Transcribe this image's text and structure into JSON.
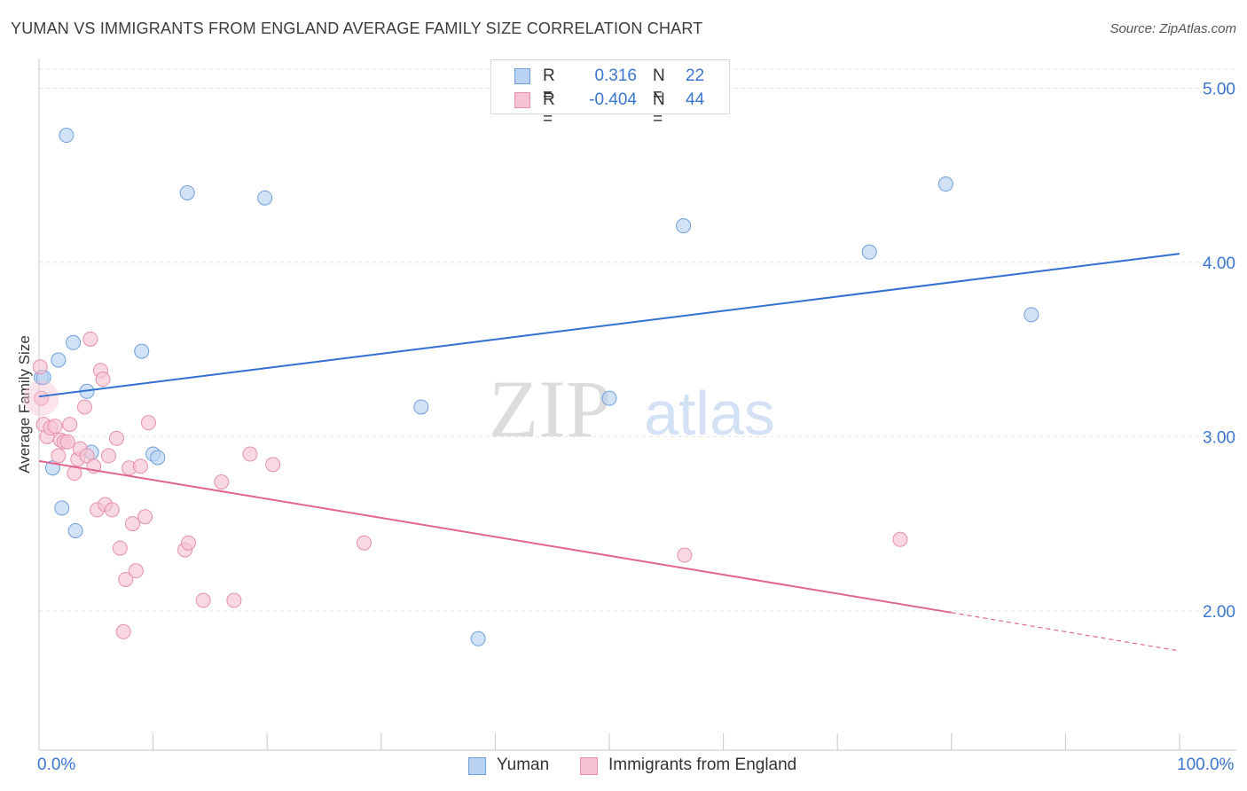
{
  "title": "YUMAN VS IMMIGRANTS FROM ENGLAND AVERAGE FAMILY SIZE CORRELATION CHART",
  "source": "Source: ZipAtlas.com",
  "watermark": {
    "zip": "ZIP",
    "atlas": "atlas"
  },
  "legend": {
    "rows": [
      {
        "r_label": "R =",
        "r_value": "0.316",
        "n_label": "N =",
        "n_value": "22"
      },
      {
        "r_label": "R =",
        "r_value": "-0.404",
        "n_label": "N =",
        "n_value": "44"
      }
    ]
  },
  "bottom_legend": {
    "series1": "Yuman",
    "series2": "Immigrants from England"
  },
  "x_axis": {
    "min_label": "0.0%",
    "max_label": "100.0%"
  },
  "colors": {
    "blue_fill": "#b9d2f2",
    "blue_stroke": "#6f9fdb",
    "blue_line": "#2f6fd1",
    "pink_fill": "#f6c3d3",
    "pink_stroke": "#e690ab",
    "pink_line": "#e0668f",
    "accent_text": "#3a76d0"
  },
  "chart_data": {
    "type": "scatter",
    "title": "YUMAN VS IMMIGRANTS FROM ENGLAND AVERAGE FAMILY SIZE CORRELATION CHART",
    "xlabel": "",
    "ylabel": "Average Family Size",
    "xlim": [
      0,
      100
    ],
    "ylim": [
      1.2,
      5.15
    ],
    "y_ticks": [
      2.0,
      3.0,
      4.0,
      5.0
    ],
    "y_tick_labels": [
      "2.00",
      "3.00",
      "4.00",
      "5.00"
    ],
    "series": [
      {
        "name": "Yuman",
        "r": 0.316,
        "n": 22,
        "points": [
          [
            0.2,
            3.34
          ],
          [
            0.4,
            3.34
          ],
          [
            1.2,
            2.82
          ],
          [
            1.7,
            3.44
          ],
          [
            2.0,
            2.59
          ],
          [
            2.4,
            4.73
          ],
          [
            3.0,
            3.54
          ],
          [
            3.2,
            2.46
          ],
          [
            4.2,
            3.26
          ],
          [
            4.6,
            2.91
          ],
          [
            9.0,
            3.49
          ],
          [
            10.0,
            2.9
          ],
          [
            10.4,
            2.88
          ],
          [
            13.0,
            4.4
          ],
          [
            19.8,
            4.37
          ],
          [
            33.5,
            3.17
          ],
          [
            38.5,
            1.84
          ],
          [
            50.0,
            3.22
          ],
          [
            56.5,
            4.21
          ],
          [
            72.8,
            4.06
          ],
          [
            79.5,
            4.45
          ],
          [
            87.0,
            3.7
          ]
        ],
        "trend": {
          "x0": 0,
          "y0": 3.23,
          "x1": 100,
          "y1": 4.05
        }
      },
      {
        "name": "Immigrants from England",
        "r": -0.404,
        "n": 44,
        "points": [
          [
            0.2,
            3.22
          ],
          [
            0.4,
            3.07
          ],
          [
            0.7,
            3.0
          ],
          [
            1.0,
            3.05
          ],
          [
            1.4,
            3.06
          ],
          [
            1.7,
            2.89
          ],
          [
            1.9,
            2.98
          ],
          [
            2.2,
            2.97
          ],
          [
            2.5,
            2.97
          ],
          [
            2.7,
            3.07
          ],
          [
            3.1,
            2.79
          ],
          [
            3.4,
            2.87
          ],
          [
            3.6,
            2.93
          ],
          [
            4.0,
            3.17
          ],
          [
            4.2,
            2.89
          ],
          [
            4.5,
            3.56
          ],
          [
            4.8,
            2.83
          ],
          [
            5.1,
            2.58
          ],
          [
            5.4,
            3.38
          ],
          [
            5.6,
            3.33
          ],
          [
            5.8,
            2.61
          ],
          [
            6.1,
            2.89
          ],
          [
            6.4,
            2.58
          ],
          [
            6.8,
            2.99
          ],
          [
            7.1,
            2.36
          ],
          [
            7.4,
            1.88
          ],
          [
            7.6,
            2.18
          ],
          [
            7.9,
            2.82
          ],
          [
            8.2,
            2.5
          ],
          [
            8.5,
            2.23
          ],
          [
            8.9,
            2.83
          ],
          [
            9.3,
            2.54
          ],
          [
            9.6,
            3.08
          ],
          [
            12.8,
            2.35
          ],
          [
            13.1,
            2.39
          ],
          [
            14.4,
            2.06
          ],
          [
            16.0,
            2.74
          ],
          [
            17.1,
            2.06
          ],
          [
            18.5,
            2.9
          ],
          [
            20.5,
            2.84
          ],
          [
            28.5,
            2.39
          ],
          [
            56.6,
            2.32
          ],
          [
            75.5,
            2.41
          ],
          [
            0.1,
            3.4
          ]
        ],
        "trend": {
          "x0": 0,
          "y0": 2.86,
          "x1": 80,
          "y1": 1.99
        },
        "trend_dashed": {
          "x0": 80,
          "y0": 1.99,
          "x1": 100,
          "y1": 1.77
        }
      }
    ]
  }
}
